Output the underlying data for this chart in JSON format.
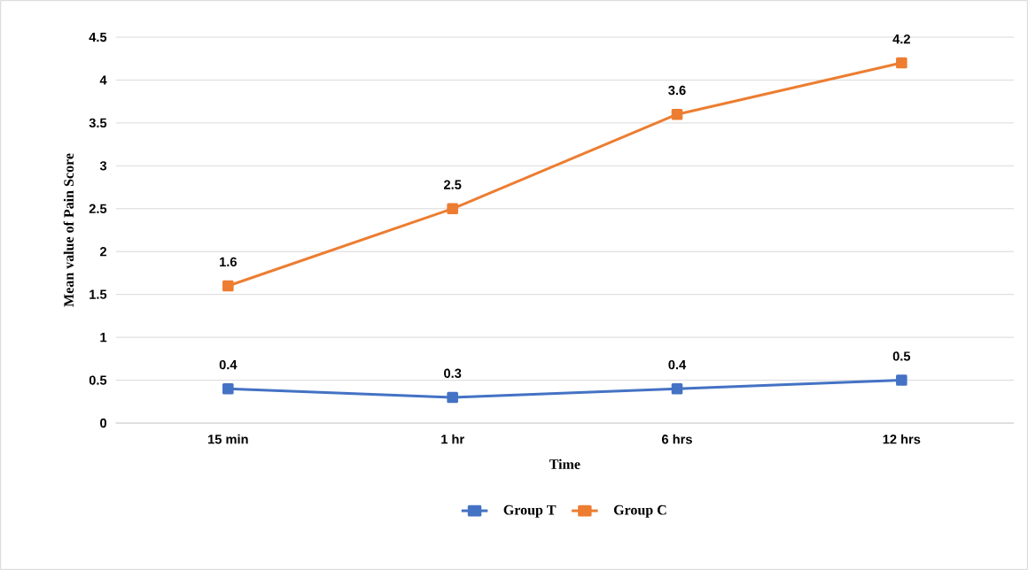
{
  "chart_data": {
    "type": "line",
    "xlabel": "Time",
    "ylabel": "Mean value  of Pain Score",
    "categories": [
      "15 min",
      "1 hr",
      "6 hrs",
      "12 hrs"
    ],
    "series": [
      {
        "name": "Group T",
        "color": "#4472c4",
        "values": [
          0.4,
          0.3,
          0.4,
          0.5
        ]
      },
      {
        "name": "Group C",
        "color": "#ed7d31",
        "values": [
          1.6,
          2.5,
          3.6,
          4.2
        ]
      }
    ],
    "ylim": [
      0,
      4.5
    ],
    "yticks": [
      0,
      0.5,
      1,
      1.5,
      2,
      2.5,
      3,
      3.5,
      4,
      4.5
    ],
    "grid": "y",
    "legend": "bottom",
    "marker": "square",
    "line_style": "solid",
    "data_labels": true
  }
}
